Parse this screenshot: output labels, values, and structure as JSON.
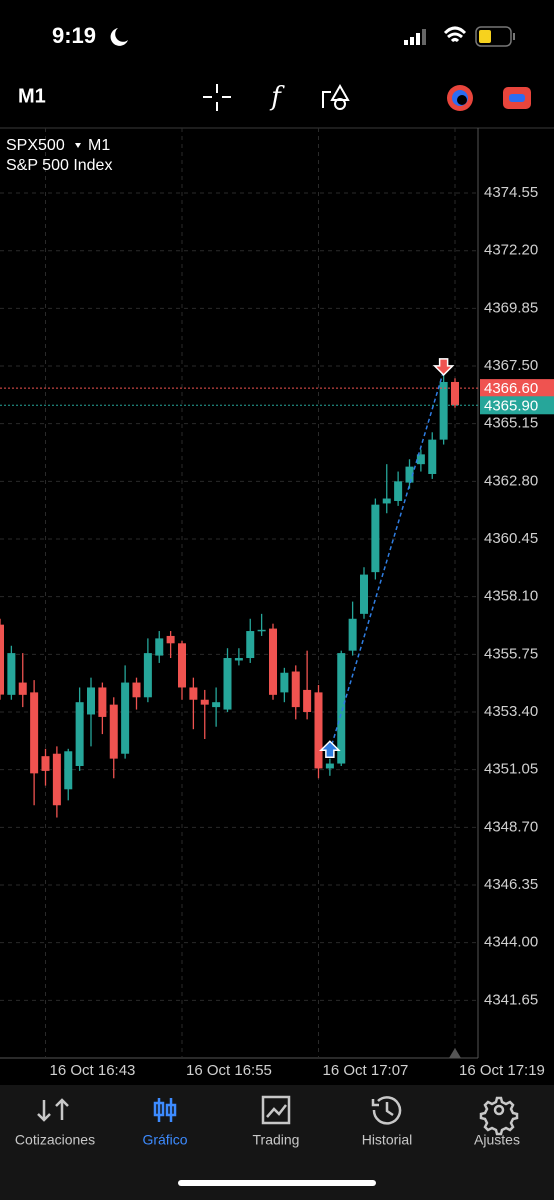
{
  "status_bar": {
    "time": "9:19"
  },
  "toolbar": {
    "timeframe": "M1"
  },
  "chart_data": {
    "type": "candlestick",
    "symbol": "SPX500",
    "timeframe": "M1",
    "subtitle": "S&P 500 Index",
    "categories": [
      null,
      null,
      null,
      null,
      "16 Oct 16:43",
      null,
      null,
      null,
      null,
      null,
      null,
      null,
      null,
      null,
      null,
      null,
      "16 Oct 16:55",
      null,
      null,
      null,
      null,
      null,
      null,
      null,
      null,
      null,
      null,
      null,
      "16 Oct 17:07",
      null,
      null,
      null,
      null,
      null,
      null,
      null,
      null,
      null,
      null,
      null,
      "16 Oct 17:19"
    ],
    "open": [
      4356.96,
      4354.1,
      4354.6,
      4354.2,
      4351.6,
      4351.7,
      4350.25,
      4351.2,
      4353.3,
      4354.4,
      4353.7,
      4351.7,
      4354.6,
      4354.0,
      4355.7,
      4356.5,
      4356.2,
      4354.4,
      4353.9,
      4353.6,
      4353.5,
      4355.5,
      4355.6,
      4356.7,
      4356.8,
      4354.2,
      4355.05,
      4354.3,
      4354.2,
      4351.1,
      4351.3,
      4355.9,
      4357.4,
      4359.1,
      4361.9,
      4362.0,
      4362.75,
      4363.5,
      4363.1,
      4364.5,
      4366.85
    ],
    "high": [
      4357.2,
      4356.1,
      4355.8,
      4354.7,
      4351.9,
      4352.0,
      4351.9,
      4354.4,
      4354.8,
      4354.6,
      4354.0,
      4355.3,
      4354.8,
      4356.4,
      4356.7,
      4356.7,
      4356.3,
      4354.8,
      4354.3,
      4354.4,
      4356.0,
      4356.0,
      4357.2,
      4357.4,
      4357.0,
      4355.2,
      4355.3,
      4355.9,
      4354.5,
      4351.5,
      4355.9,
      4357.9,
      4359.3,
      4362.1,
      4363.5,
      4363.2,
      4363.7,
      4364.1,
      4364.8,
      4367.2,
      4367.0
    ],
    "low": [
      4353.9,
      4353.9,
      4353.6,
      4349.6,
      4350.4,
      4349.1,
      4349.8,
      4351.0,
      4352.0,
      4352.5,
      4350.7,
      4351.5,
      4353.5,
      4353.8,
      4355.4,
      4355.6,
      4353.9,
      4352.7,
      4352.3,
      4352.8,
      4353.4,
      4355.3,
      4355.4,
      4356.5,
      4353.9,
      4353.8,
      4353.1,
      4353.1,
      4350.7,
      4350.8,
      4351.2,
      4355.7,
      4357.2,
      4358.8,
      4361.5,
      4361.8,
      4362.5,
      4363.2,
      4362.9,
      4364.3,
      4365.8
    ],
    "close": [
      4354.11,
      4355.8,
      4354.1,
      4350.9,
      4351.0,
      4349.6,
      4351.8,
      4353.8,
      4354.4,
      4353.2,
      4351.5,
      4354.6,
      4354.0,
      4355.8,
      4356.4,
      4356.2,
      4354.4,
      4353.9,
      4353.7,
      4353.8,
      4355.6,
      4355.6,
      4356.7,
      4356.75,
      4354.1,
      4355.0,
      4353.6,
      4353.4,
      4351.1,
      4351.3,
      4355.8,
      4357.2,
      4359.0,
      4361.85,
      4362.1,
      4362.8,
      4363.4,
      4363.9,
      4364.5,
      4366.85,
      4365.9
    ],
    "up_color": "#26a69a",
    "down_color": "#ef5350",
    "ylim": [
      4339.3,
      4377.2
    ],
    "yticks": [
      4374.55,
      {
        "value": 4372.2,
        "label": "4372.20"
      },
      4369.85,
      {
        "value": 4367.5,
        "label": "4367.50"
      },
      4365.15,
      {
        "value": 4362.8,
        "label": "4362.80"
      },
      4360.45,
      {
        "value": 4358.1,
        "label": "4358.10"
      },
      4355.75,
      {
        "value": 4353.4,
        "label": "4353.40"
      },
      4351.05,
      {
        "value": 4348.7,
        "label": "4348.70"
      },
      4346.35,
      {
        "value": 4344.0,
        "label": "4344.00"
      },
      4341.65
    ],
    "grid": true,
    "price_lines": [
      {
        "value": 4366.6,
        "label": "4366.60",
        "color": "#ef5350"
      },
      {
        "value": 4365.9,
        "label": "4365.90",
        "color": "#26a69a"
      }
    ],
    "buy_marks": [
      null,
      null,
      null,
      null,
      null,
      null,
      null,
      null,
      null,
      null,
      null,
      null,
      null,
      null,
      null,
      null,
      null,
      null,
      null,
      null,
      null,
      null,
      null,
      null,
      null,
      null,
      null,
      null,
      null,
      4351.8,
      null,
      null,
      null,
      null,
      null,
      null,
      null,
      null,
      null,
      null,
      null
    ],
    "sell_marks": [
      null,
      null,
      null,
      null,
      null,
      null,
      null,
      null,
      null,
      null,
      null,
      null,
      null,
      null,
      null,
      null,
      null,
      null,
      null,
      null,
      null,
      null,
      null,
      null,
      null,
      null,
      null,
      null,
      null,
      null,
      null,
      null,
      null,
      null,
      null,
      null,
      null,
      null,
      null,
      4367.3,
      null
    ]
  },
  "tab_bar": {
    "tabs": [
      "Cotizaciones",
      "Gráfico",
      "Trading",
      "Historial",
      "Ajustes"
    ],
    "active": 1
  }
}
